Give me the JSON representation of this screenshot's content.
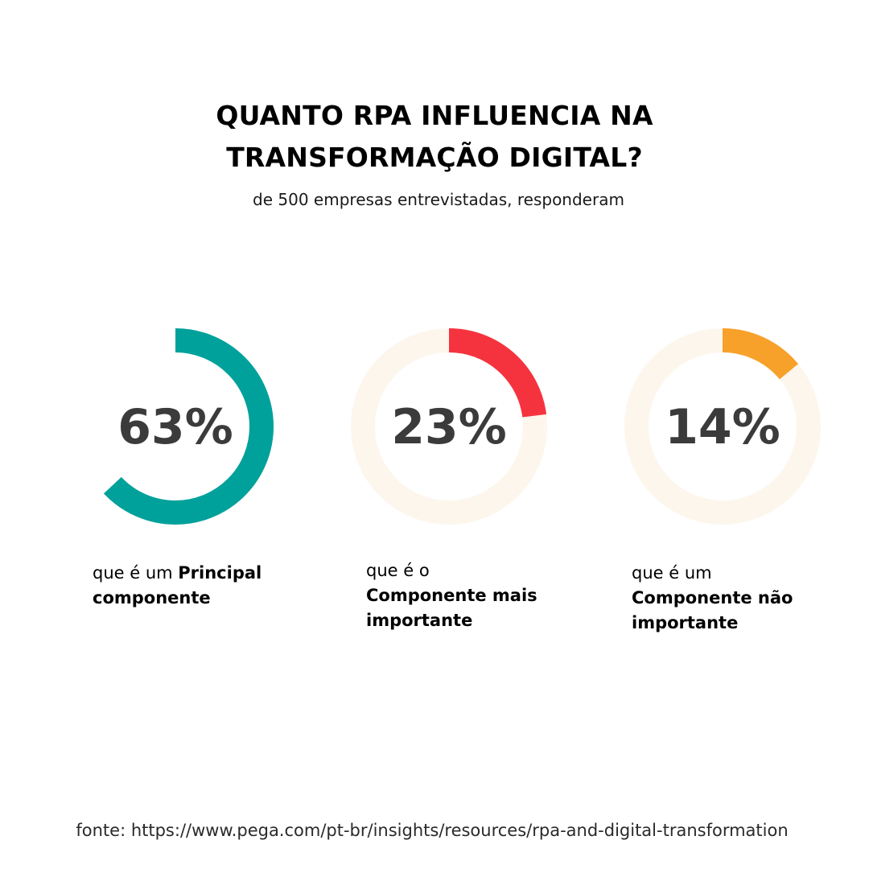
{
  "title": {
    "line1": "QUANTO RPA INFLUENCIA NA",
    "line2": "TRANSFORMAÇÃO DIGITAL?"
  },
  "subtitle": "de 500 empresas entrevistadas, responderam",
  "colors": {
    "track": "#fdf6ec",
    "series": [
      "#00a19b",
      "#f5333f",
      "#f7a12b"
    ]
  },
  "chart_data": {
    "type": "pie",
    "categories": [
      "que é um Principal componente",
      "que é o Componente mais importante",
      "que é um Componente não importante"
    ],
    "values": [
      63,
      23,
      14
    ],
    "labels": [
      "63%",
      "23%",
      "14%"
    ],
    "unit": "%",
    "title": "QUANTO RPA INFLUENCIA NA TRANSFORMAÇÃO DIGITAL?"
  },
  "captions": [
    {
      "prefix": "que é um ",
      "bold": "Principal componente"
    },
    {
      "prefix": "que é o ",
      "bold": "Componente mais importante"
    },
    {
      "prefix": "que é um ",
      "bold": "Componente não importante"
    }
  ],
  "source": "fonte: https://www.pega.com/pt-br/insights/resources/rpa-and-digital-transformation"
}
